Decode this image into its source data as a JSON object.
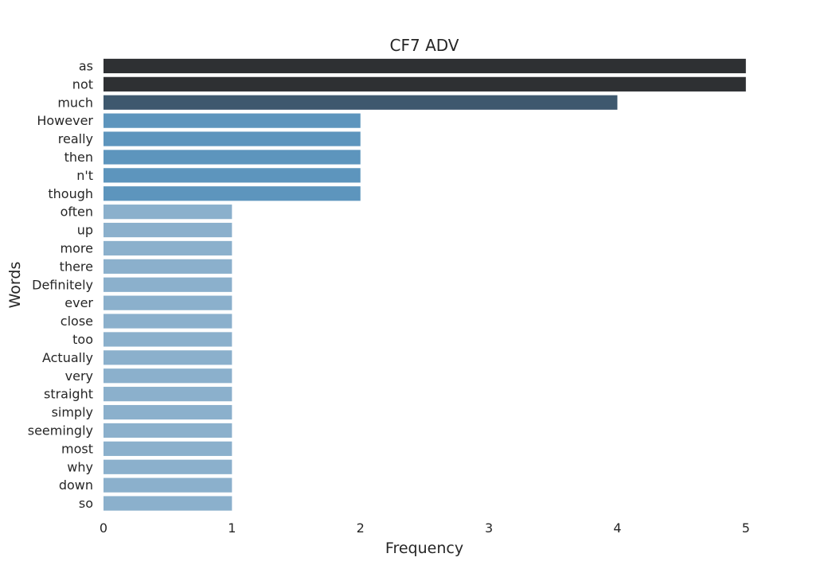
{
  "chart_data": {
    "type": "bar",
    "orientation": "horizontal",
    "title": "CF7 ADV",
    "xlabel": "Frequency",
    "ylabel": "Words",
    "xlim": [
      0,
      5.5
    ],
    "xticks": [
      0,
      1,
      2,
      3,
      4,
      5
    ],
    "grid": false,
    "categories": [
      "as",
      "not",
      "much",
      "However",
      "really",
      "then",
      "n't",
      "though",
      "often",
      "up",
      "more",
      "there",
      "Definitely",
      "ever",
      "close",
      "too",
      "Actually",
      "very",
      "straight",
      "simply",
      "seemingly",
      "most",
      "why",
      "down",
      "so"
    ],
    "values": [
      5,
      5,
      4,
      2,
      2,
      2,
      2,
      2,
      1,
      1,
      1,
      1,
      1,
      1,
      1,
      1,
      1,
      1,
      1,
      1,
      1,
      1,
      1,
      1,
      1
    ],
    "colors": {
      "5": "#2e3033",
      "4": "#3e586e",
      "2": "#5d95bd",
      "1": "#8bb0cc"
    }
  }
}
